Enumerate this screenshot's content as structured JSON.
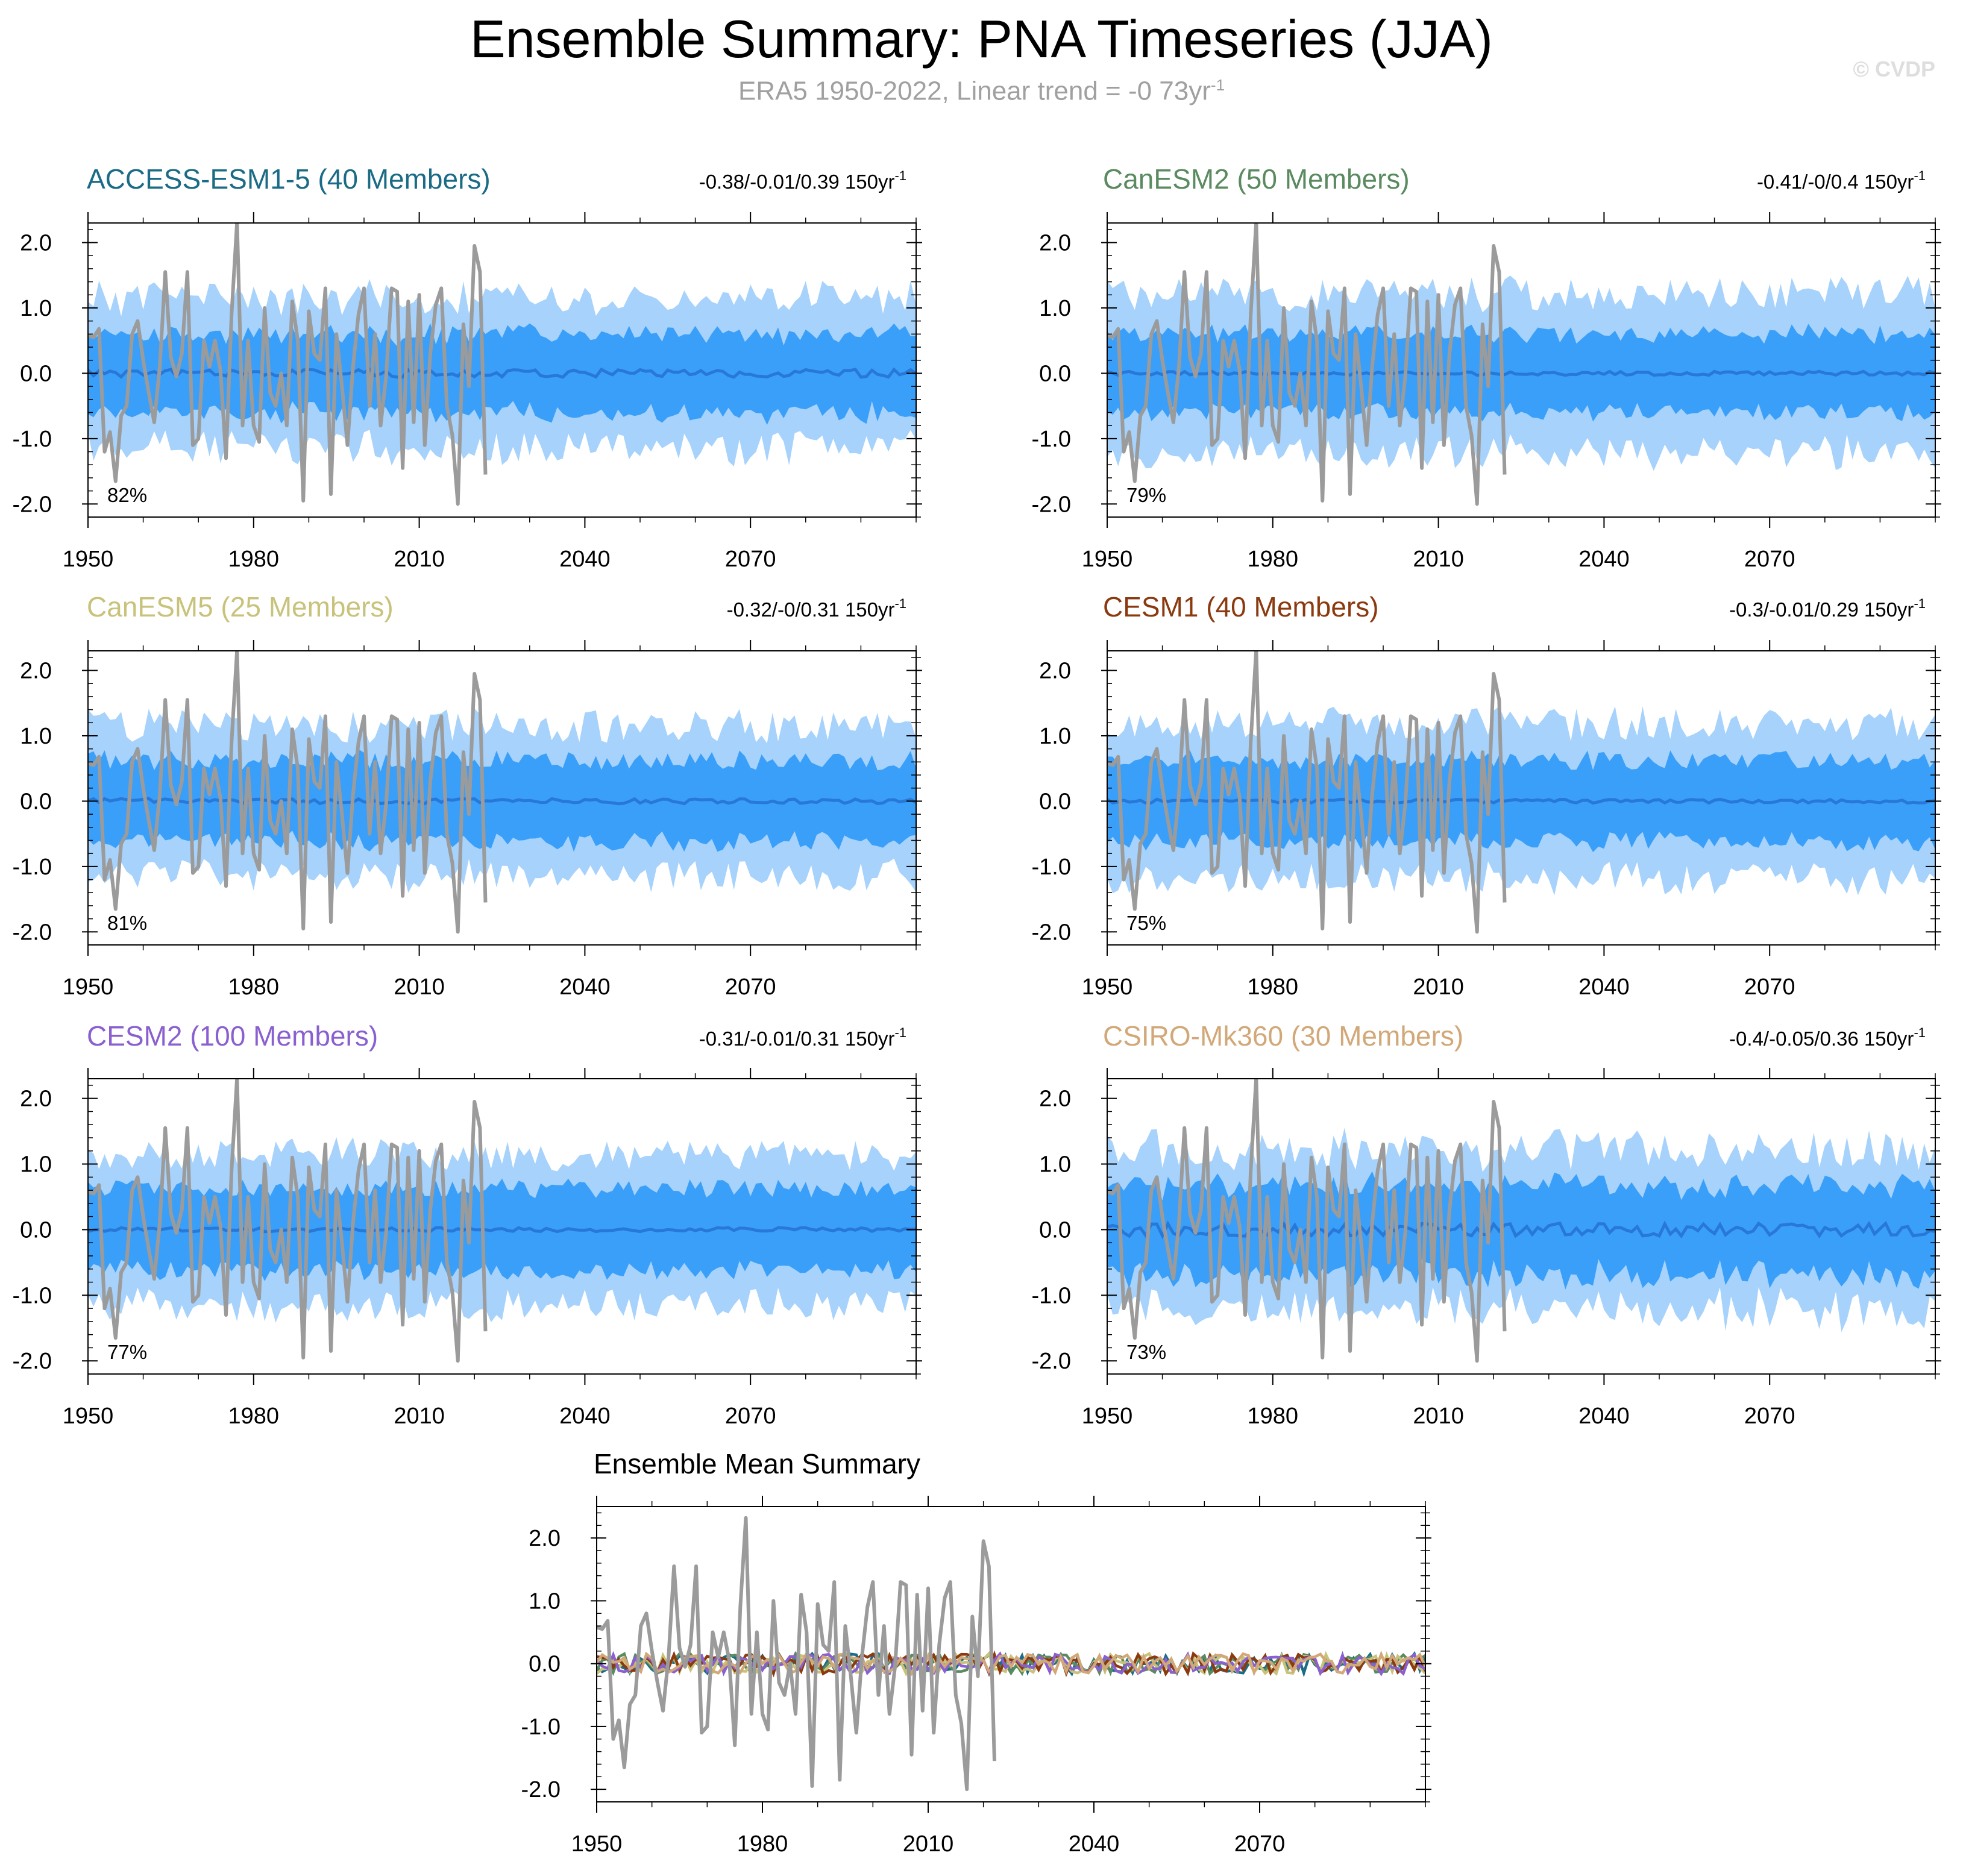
{
  "title": "Ensemble Summary: PNA Timeseries (JJA)",
  "subtitle": {
    "text": "ERA5 1950-2022, Linear trend = -0 73yr",
    "sup": "-1"
  },
  "watermark": "© CVDP",
  "colors": {
    "outer_band": "#a6d2fb",
    "inner_band": "#3a9ff9",
    "ensemble_mean": "#2878d8",
    "observations": "#9b9b9b",
    "frame": "#000000"
  },
  "chart_data": [
    {
      "type": "line",
      "title": "ACCESS-ESM1-5 (40 Members)",
      "title_color": "#1a6b85",
      "trend_text": "-0.38/-0.01/0.39 150yr",
      "trend_sup": "-1",
      "percent_label": "82%",
      "xlim": [
        1950,
        2100
      ],
      "ylim": [
        -2.2,
        2.3
      ],
      "xticks": [
        "1950",
        "1980",
        "2010",
        "2040",
        "2070"
      ],
      "yticks": [
        "2.0",
        "1.0",
        "0.0",
        "-1.0",
        "-2.0"
      ],
      "outer_spread": 1.12,
      "inner_spread": 0.6,
      "mean_amplitude": 0.06,
      "noise_seed": 11
    },
    {
      "type": "line",
      "title": "CanESM2 (50 Members)",
      "title_color": "#5a8a5f",
      "trend_text": "-0.41/-0/0.4 150yr",
      "trend_sup": "-1",
      "percent_label": "79%",
      "xlim": [
        1950,
        2100
      ],
      "ylim": [
        -2.2,
        2.3
      ],
      "xticks": [
        "1950",
        "1980",
        "2010",
        "2040",
        "2070"
      ],
      "yticks": [
        "2.0",
        "1.0",
        "0.0",
        "-1.0",
        "-2.0"
      ],
      "outer_spread": 1.18,
      "inner_spread": 0.6,
      "mean_amplitude": 0.03,
      "noise_seed": 23
    },
    {
      "type": "line",
      "title": "CanESM5 (25 Members)",
      "title_color": "#c8c27a",
      "trend_text": "-0.32/-0/0.31 150yr",
      "trend_sup": "-1",
      "percent_label": "81%",
      "xlim": [
        1950,
        2100
      ],
      "ylim": [
        -2.2,
        2.3
      ],
      "xticks": [
        "1950",
        "1980",
        "2010",
        "2040",
        "2070"
      ],
      "yticks": [
        "2.0",
        "1.0",
        "0.0",
        "-1.0",
        "-2.0"
      ],
      "outer_spread": 1.12,
      "inner_spread": 0.62,
      "mean_amplitude": 0.04,
      "noise_seed": 37
    },
    {
      "type": "line",
      "title": "CESM1 (40 Members)",
      "title_color": "#8b3a0f",
      "trend_text": "-0.3/-0.01/0.29 150yr",
      "trend_sup": "-1",
      "percent_label": "75%",
      "xlim": [
        1950,
        2100
      ],
      "ylim": [
        -2.2,
        2.3
      ],
      "xticks": [
        "1950",
        "1980",
        "2010",
        "2040",
        "2070"
      ],
      "yticks": [
        "2.0",
        "1.0",
        "0.0",
        "-1.0",
        "-2.0"
      ],
      "outer_spread": 1.15,
      "inner_spread": 0.62,
      "mean_amplitude": 0.03,
      "noise_seed": 41
    },
    {
      "type": "line",
      "title": "CESM2 (100 Members)",
      "title_color": "#8a5fd0",
      "trend_text": "-0.31/-0.01/0.31 150yr",
      "trend_sup": "-1",
      "percent_label": "77%",
      "xlim": [
        1950,
        2100
      ],
      "ylim": [
        -2.2,
        2.3
      ],
      "xticks": [
        "1950",
        "1980",
        "2010",
        "2040",
        "2070"
      ],
      "yticks": [
        "2.0",
        "1.0",
        "0.0",
        "-1.0",
        "-2.0"
      ],
      "outer_spread": 1.12,
      "inner_spread": 0.62,
      "mean_amplitude": 0.03,
      "noise_seed": 53
    },
    {
      "type": "line",
      "title": "CSIRO-Mk360 (30 Members)",
      "title_color": "#d2a878",
      "trend_text": "-0.4/-0.05/0.36 150yr",
      "trend_sup": "-1",
      "percent_label": "73%",
      "xlim": [
        1950,
        2100
      ],
      "ylim": [
        -2.2,
        2.3
      ],
      "xticks": [
        "1950",
        "1980",
        "2010",
        "2040",
        "2070"
      ],
      "yticks": [
        "2.0",
        "1.0",
        "0.0",
        "-1.0",
        "-2.0"
      ],
      "outer_spread": 1.18,
      "inner_spread": 0.68,
      "mean_amplitude": 0.1,
      "noise_seed": 67
    },
    {
      "type": "line",
      "title": "Ensemble Mean Summary",
      "title_color": "#000000",
      "xlim": [
        1950,
        2100
      ],
      "ylim": [
        -2.2,
        2.5
      ],
      "xticks": [
        "1950",
        "1980",
        "2010",
        "2040",
        "2070"
      ],
      "yticks": [
        "2.0",
        "1.0",
        "0.0",
        "-1.0",
        "-2.0"
      ],
      "model_mean_colors": [
        "#1a6b85",
        "#5a8a5f",
        "#c8c27a",
        "#8b3a0f",
        "#8a5fd0",
        "#d2a878"
      ]
    }
  ],
  "observations": {
    "name": "ERA5",
    "start_year": 1950,
    "end_year": 2022,
    "values": [
      0.58,
      0.55,
      0.68,
      -1.2,
      -0.9,
      -1.65,
      -0.65,
      -0.5,
      0.6,
      0.8,
      0.2,
      -0.3,
      -0.75,
      0.1,
      1.55,
      0.25,
      -0.05,
      0.3,
      1.55,
      -1.1,
      -1.0,
      0.5,
      0.1,
      0.5,
      0.05,
      -1.3,
      0.9,
      2.32,
      -0.8,
      0.5,
      -0.8,
      -1.05,
      1.0,
      -0.3,
      -0.5,
      0.0,
      -0.8,
      1.1,
      0.5,
      -1.95,
      0.95,
      0.3,
      0.2,
      1.3,
      -1.85,
      0.6,
      -0.2,
      -1.1,
      0.1,
      0.9,
      1.3,
      -0.5,
      0.6,
      -0.8,
      -0.05,
      1.3,
      1.25,
      -1.45,
      1.1,
      -0.75,
      1.2,
      -1.1,
      0.3,
      1.05,
      1.3,
      -0.5,
      -0.95,
      -2.0,
      0.75,
      -0.2,
      1.95,
      1.55,
      -1.55
    ]
  }
}
